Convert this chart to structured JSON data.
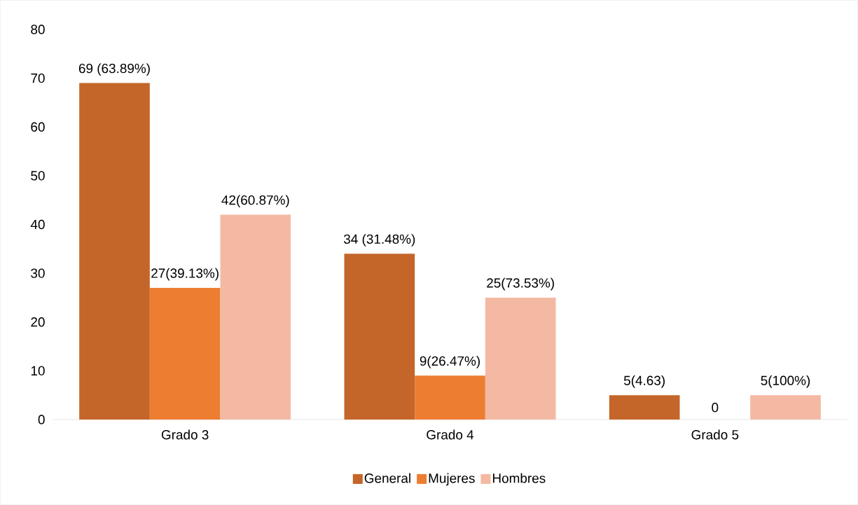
{
  "chart_data": {
    "type": "bar",
    "categories": [
      "Grado 3",
      "Grado 4",
      "Grado 5"
    ],
    "series": [
      {
        "name": "General",
        "color": "#c4662a",
        "values": [
          69,
          34,
          5
        ],
        "value_labels": [
          "69 (63.89%)",
          "34 (31.48%)",
          "5(4.63)"
        ]
      },
      {
        "name": "Mujeres",
        "color": "#ed7d31",
        "values": [
          27,
          9,
          0
        ],
        "value_labels": [
          "27(39.13%)",
          "9(26.47%)",
          "0"
        ]
      },
      {
        "name": "Hombres",
        "color": "#f4b9a3",
        "values": [
          42,
          25,
          5
        ],
        "value_labels": [
          "42(60.87%)",
          "25(73.53%)",
          "5(100%)"
        ]
      }
    ],
    "ylim": [
      0,
      80
    ],
    "yticks": [
      0,
      10,
      20,
      30,
      40,
      50,
      60,
      70,
      80
    ],
    "grid": false,
    "legend": "bottom"
  }
}
